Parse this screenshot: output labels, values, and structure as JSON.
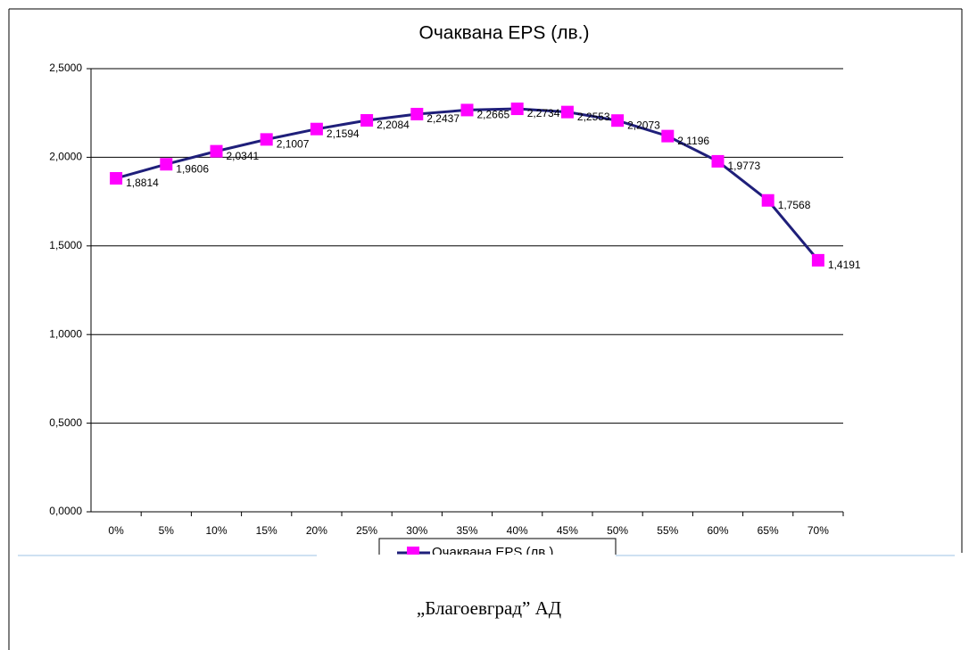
{
  "chart_data": {
    "type": "line",
    "title": "Очаквана EPS (лв.)",
    "categories": [
      "0%",
      "5%",
      "10%",
      "15%",
      "20%",
      "25%",
      "30%",
      "35%",
      "40%",
      "45%",
      "50%",
      "55%",
      "60%",
      "65%",
      "70%"
    ],
    "series": [
      {
        "name": "Очаквана EPS (лв.)",
        "color": "#1f1f7a",
        "marker_color": "#ff00ff",
        "values": [
          1.8814,
          1.9606,
          2.0341,
          2.1007,
          2.1594,
          2.2084,
          2.2437,
          2.2665,
          2.2734,
          2.2553,
          2.2073,
          2.1196,
          1.9773,
          1.7568,
          1.4191
        ],
        "value_labels": [
          "1,8814",
          "1,9606",
          "2,0341",
          "2,1007",
          "2,1594",
          "2,2084",
          "2,2437",
          "2,2665",
          "2,2734",
          "2,2553",
          "2,2073",
          "2,1196",
          "1,9773",
          "1,7568",
          "1,4191"
        ]
      }
    ],
    "ylim": [
      0,
      2.5
    ],
    "yticks": [
      {
        "value": 0,
        "label": "0,0000"
      },
      {
        "value": 0.5,
        "label": "0,5000"
      },
      {
        "value": 1,
        "label": "1,0000"
      },
      {
        "value": 1.5,
        "label": "1,5000"
      },
      {
        "value": 2,
        "label": "2,0000"
      },
      {
        "value": 2.5,
        "label": "2,5000"
      }
    ],
    "grid": true,
    "legend": "bottom"
  },
  "footer": "„Благоевград” АД"
}
